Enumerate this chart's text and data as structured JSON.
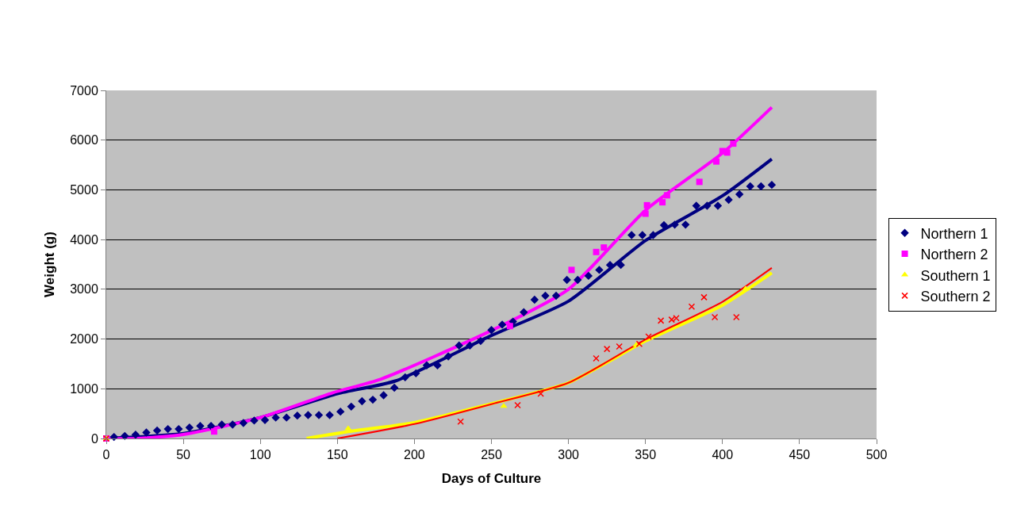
{
  "chart_data": {
    "type": "scatter",
    "xlabel": "Days of Culture",
    "ylabel": "Weight (g)",
    "xlim": [
      0,
      500
    ],
    "xticks": [
      0,
      50,
      100,
      150,
      200,
      250,
      300,
      350,
      400,
      450,
      500
    ],
    "ylim": [
      0,
      7000
    ],
    "yticks": [
      0,
      1000,
      2000,
      3000,
      4000,
      5000,
      6000,
      7000
    ],
    "grid": "y",
    "legend": "right",
    "series": [
      {
        "name": "Northern 1",
        "color": "#000080",
        "marker": "diamond",
        "x": [
          5,
          12,
          19,
          26,
          33,
          40,
          47,
          54,
          61,
          68,
          75,
          82,
          89,
          96,
          103,
          110,
          117,
          124,
          131,
          138,
          145,
          152,
          159,
          166,
          173,
          180,
          187,
          194,
          201,
          208,
          215,
          222,
          229,
          236,
          243,
          250,
          257,
          264,
          271,
          278,
          285,
          292,
          299,
          306,
          313,
          320,
          327,
          334,
          341,
          348,
          355,
          362,
          369,
          376,
          383,
          390,
          397,
          404,
          411,
          418,
          425,
          432
        ],
        "values": [
          30,
          50,
          75,
          120,
          160,
          190,
          190,
          220,
          250,
          250,
          280,
          280,
          310,
          360,
          370,
          420,
          420,
          460,
          470,
          470,
          470,
          540,
          640,
          750,
          780,
          870,
          1020,
          1230,
          1310,
          1470,
          1470,
          1650,
          1870,
          1870,
          1960,
          2180,
          2290,
          2350,
          2540,
          2790,
          2870,
          2870,
          3190,
          3190,
          3270,
          3390,
          3490,
          3490,
          4090,
          4090,
          4090,
          4290,
          4300,
          4300,
          4680,
          4680,
          4680,
          4800,
          4910,
          5070,
          5070,
          5100
        ]
      },
      {
        "name": "Northern 2",
        "color": "#ff00ff",
        "marker": "square",
        "x": [
          0,
          70,
          262,
          302,
          318,
          323,
          350,
          351,
          361,
          364,
          385,
          396,
          400,
          403,
          407
        ],
        "values": [
          0,
          140,
          2260,
          3390,
          3750,
          3840,
          4520,
          4690,
          4750,
          4890,
          5160,
          5570,
          5780,
          5750,
          5930
        ]
      },
      {
        "name": "Southern 1",
        "color": "#ffff00",
        "marker": "triangle",
        "x": [
          0,
          157,
          258,
          344,
          415
        ],
        "values": [
          0,
          200,
          650,
          1880,
          3010
        ]
      },
      {
        "name": "Southern 2",
        "color": "#ff0000",
        "marker": "cross",
        "x": [
          0,
          230,
          267,
          282,
          318,
          325,
          333,
          346,
          352,
          360,
          367,
          370,
          380,
          388,
          395,
          409
        ],
        "values": [
          0,
          340,
          670,
          900,
          1610,
          1800,
          1850,
          1900,
          2050,
          2370,
          2390,
          2420,
          2650,
          2840,
          2440,
          2440
        ]
      },
      {
        "type": "line",
        "color": "#000080",
        "x": [
          0,
          50,
          100,
          150,
          188,
          250,
          300,
          350,
          400,
          432
        ],
        "values": [
          0,
          100,
          420,
          900,
          1160,
          2070,
          2760,
          3980,
          4880,
          5620
        ]
      },
      {
        "type": "line",
        "color": "#ff00ff",
        "x": [
          0,
          20,
          50,
          100,
          147,
          178,
          250,
          300,
          350,
          400,
          432
        ],
        "values": [
          0,
          0,
          80,
          420,
          920,
          1190,
          2170,
          3000,
          4590,
          5740,
          6660
        ]
      },
      {
        "type": "line",
        "color": "#ffff00",
        "x": [
          130,
          160,
          200,
          250,
          300,
          350,
          400,
          432
        ],
        "values": [
          0,
          150,
          320,
          700,
          1120,
          1960,
          2680,
          3330
        ]
      },
      {
        "type": "line",
        "color": "#ff0000",
        "x": [
          150,
          200,
          250,
          300,
          350,
          400,
          432
        ],
        "values": [
          0,
          290,
          690,
          1120,
          1990,
          2750,
          3430
        ]
      }
    ]
  }
}
